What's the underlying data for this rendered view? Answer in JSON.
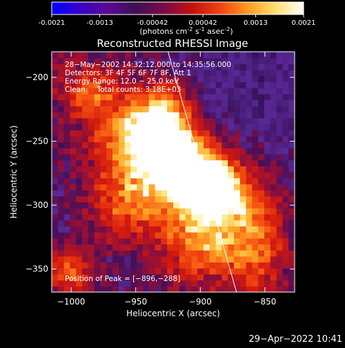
{
  "colorbar": {
    "ticks": [
      "-0.0021",
      "-0.0013",
      "-0.00042",
      "0.00042",
      "0.0013",
      "0.0021"
    ],
    "tick_values": [
      -0.0021,
      -0.0013,
      -0.00042,
      0.00042,
      0.0013,
      0.0021
    ],
    "units_main": "(photons cm",
    "units_exp1": "-2",
    "units_mid": " s",
    "units_exp2": "-1",
    "units_tail": " asec",
    "units_exp3": "-2",
    "units_end": ")",
    "colors": [
      "#0000ff",
      "#3a00c8",
      "#5a0a96",
      "#3f0f50",
      "#7a0a4a",
      "#c21010",
      "#f04010",
      "#ff9a20",
      "#ffe070",
      "#ffffff"
    ]
  },
  "chart_data": {
    "type": "heatmap",
    "title": "Reconstructed RHESSI Image",
    "xlabel": "Heliocentric X (arcsec)",
    "ylabel": "Heliocentric Y (arcsec)",
    "xlim": [
      -1015,
      -827
    ],
    "ylim": [
      -368,
      -180
    ],
    "xticks": [
      -1000,
      -950,
      -900,
      -850
    ],
    "yticks": [
      -350,
      -300,
      -250,
      -200
    ],
    "xtick_labels": [
      "−1000",
      "−950",
      "−900",
      "−850"
    ],
    "ytick_labels": [
      "−350",
      "−300",
      "−250",
      "−200"
    ],
    "peak": [
      -896,
      -288
    ],
    "secondary_peak": [
      -930,
      -258
    ],
    "limb_line": [
      [
        -925,
        -180
      ],
      [
        -872,
        -368
      ]
    ],
    "annotations": {
      "line1": "28−May−2002 14:32:12.000 to 14:35:56.000",
      "line2": "Detectors: 3F 4F 5F 6F 7F 8F, Att 1",
      "line3": "Energy Range: 12.0 − 25.0 keV",
      "line4": "Clean     Total counts: 3.18E+03",
      "peak_label": "Position of Peak = [−896,−288]"
    }
  },
  "footer": {
    "timestamp": "29−Apr−2022 10:41"
  }
}
